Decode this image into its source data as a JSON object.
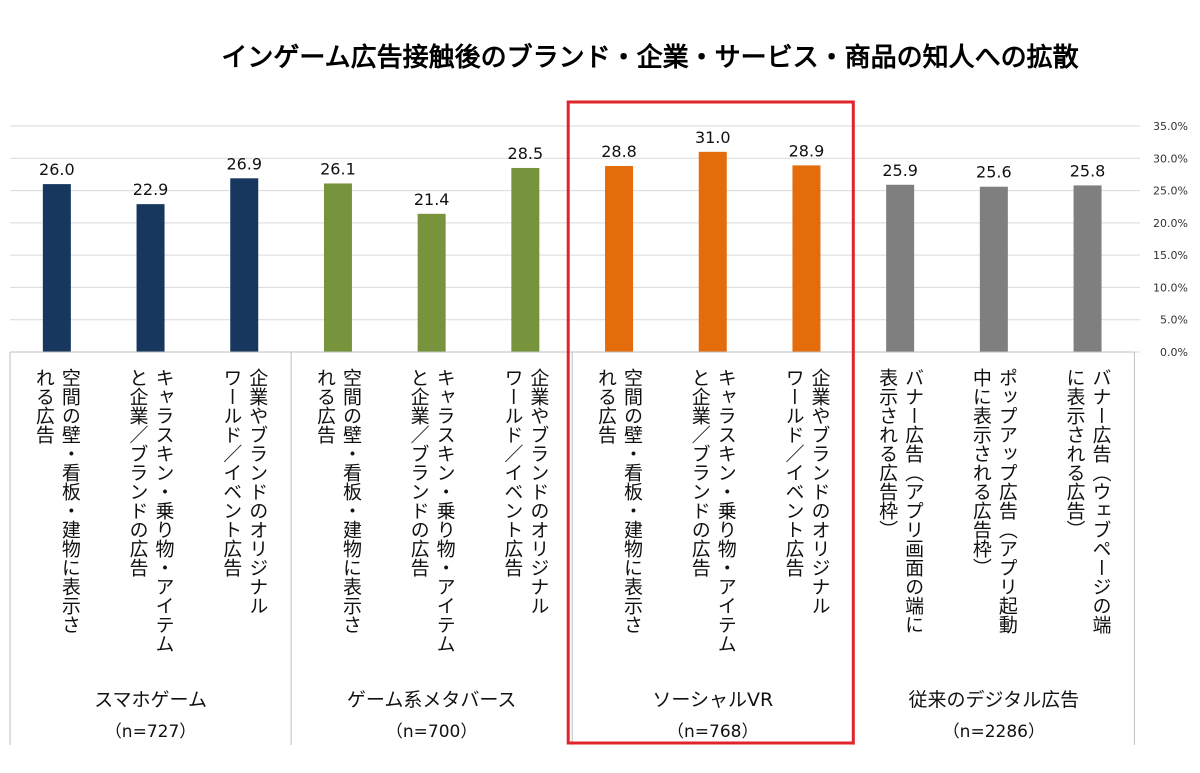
{
  "chart_data": {
    "type": "bar",
    "title": "インゲーム広告接触後のブランド・企業・サービス・商品の知人への拡散",
    "ylim": [
      0,
      35
    ],
    "yticks": [
      "0.0%",
      "5.0%",
      "10.0%",
      "15.0%",
      "20.0%",
      "25.0%",
      "30.0%",
      "35.0%"
    ],
    "grid": true,
    "groups": [
      {
        "name": "スマホゲーム",
        "n": "（n=727）",
        "color": "#17375e",
        "highlight": false,
        "categories": [
          [
            "空間の壁・看板・建物に表示さ",
            "れる広告"
          ],
          [
            "キャラスキン・乗り物・アイテム",
            "と企業／ブランドの広告"
          ],
          [
            "企業やブランドのオリジナル",
            "ワールド／イベント広告"
          ]
        ],
        "values": [
          26.0,
          22.9,
          26.9
        ],
        "labels": [
          "26.0",
          "22.9",
          "26.9"
        ]
      },
      {
        "name": "ゲーム系メタバース",
        "n": "（n=700）",
        "color": "#77933c",
        "highlight": false,
        "categories": [
          [
            "空間の壁・看板・建物に表示さ",
            "れる広告"
          ],
          [
            "キャラスキン・乗り物・アイテム",
            "と企業／ブランドの広告"
          ],
          [
            "企業やブランドのオリジナル",
            "ワールド／イベント広告"
          ]
        ],
        "values": [
          26.1,
          21.4,
          28.5
        ],
        "labels": [
          "26.1",
          "21.4",
          "28.5"
        ]
      },
      {
        "name": "ソーシャルVR",
        "n": "（n=768）",
        "color": "#e46c0a",
        "highlight": true,
        "categories": [
          [
            "空間の壁・看板・建物に表示さ",
            "れる広告"
          ],
          [
            "キャラスキン・乗り物・アイテム",
            "と企業／ブランドの広告"
          ],
          [
            "企業やブランドのオリジナル",
            "ワールド／イベント広告"
          ]
        ],
        "values": [
          28.8,
          31.0,
          28.9
        ],
        "labels": [
          "28.8",
          "31.0",
          "28.9"
        ]
      },
      {
        "name": "従来のデジタル広告",
        "n": "（n=2286）",
        "color": "#7f7f7f",
        "highlight": false,
        "categories": [
          [
            "バナー広告（アプリ画面の端に",
            "表示される広告枠）"
          ],
          [
            "ポップアップ広告（アプリ起動",
            "中に表示される広告枠）"
          ],
          [
            "バナー広告（ウェブページの端",
            "に表示される広告）"
          ]
        ],
        "values": [
          25.9,
          25.6,
          25.8
        ],
        "labels": [
          "25.9",
          "25.6",
          "25.8"
        ]
      }
    ],
    "highlight_color": "#e0242b"
  }
}
